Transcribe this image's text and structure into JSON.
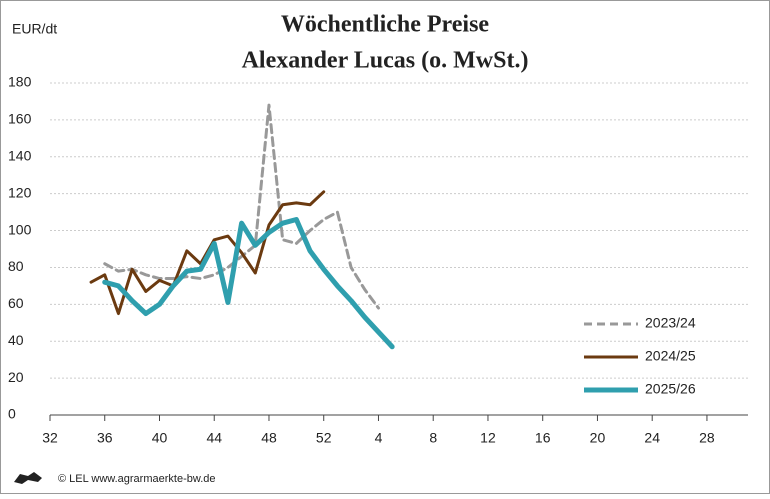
{
  "chart_data": {
    "type": "line",
    "title": "Wöchentliche Preise",
    "subtitle": "Alexander Lucas (o. MwSt.)",
    "y_label": "EUR/dt",
    "footer": "© LEL www.agrarmaerkte-bw.de",
    "x": [
      35,
      36,
      37,
      38,
      39,
      40,
      41,
      42,
      43,
      44,
      45,
      46,
      47,
      48,
      49,
      50,
      51,
      52,
      53,
      54,
      55,
      56,
      57
    ],
    "series": [
      {
        "name": "2023/24",
        "color": "#999999",
        "dash": true,
        "width": 3,
        "values": [
          null,
          82,
          78,
          79,
          76,
          74,
          74,
          75,
          74,
          76,
          80,
          86,
          92,
          168,
          95,
          93,
          100,
          106,
          110,
          80,
          68,
          58,
          null
        ]
      },
      {
        "name": "2024/25",
        "color": "#6b3a10",
        "dash": false,
        "width": 3,
        "values": [
          72,
          76,
          55,
          79,
          67,
          73,
          70,
          89,
          82,
          95,
          97,
          88,
          77,
          103,
          114,
          115,
          114,
          121,
          null,
          null,
          null,
          null,
          null
        ]
      },
      {
        "name": "2025/26",
        "color": "#2f9fae",
        "dash": false,
        "width": 5,
        "values": [
          null,
          72,
          70,
          62,
          55,
          60,
          70,
          78,
          79,
          93,
          61,
          104,
          92,
          99,
          104,
          106,
          89,
          79,
          70,
          62,
          53,
          45,
          37
        ]
      }
    ],
    "xlim": [
      32,
      83
    ],
    "xticks": [
      32,
      36,
      40,
      44,
      48,
      52,
      {
        "value": 56,
        "label": "4"
      },
      {
        "value": 60,
        "label": "8"
      },
      {
        "value": 64,
        "label": "12"
      },
      {
        "value": 68,
        "label": "16"
      },
      {
        "value": 72,
        "label": "20"
      },
      {
        "value": 76,
        "label": "24"
      },
      {
        "value": 80,
        "label": "28"
      }
    ],
    "ylim": [
      0,
      180
    ],
    "yticks": [
      0,
      20,
      40,
      60,
      80,
      100,
      120,
      140,
      160,
      180
    ],
    "grid": true,
    "legend": "right"
  }
}
